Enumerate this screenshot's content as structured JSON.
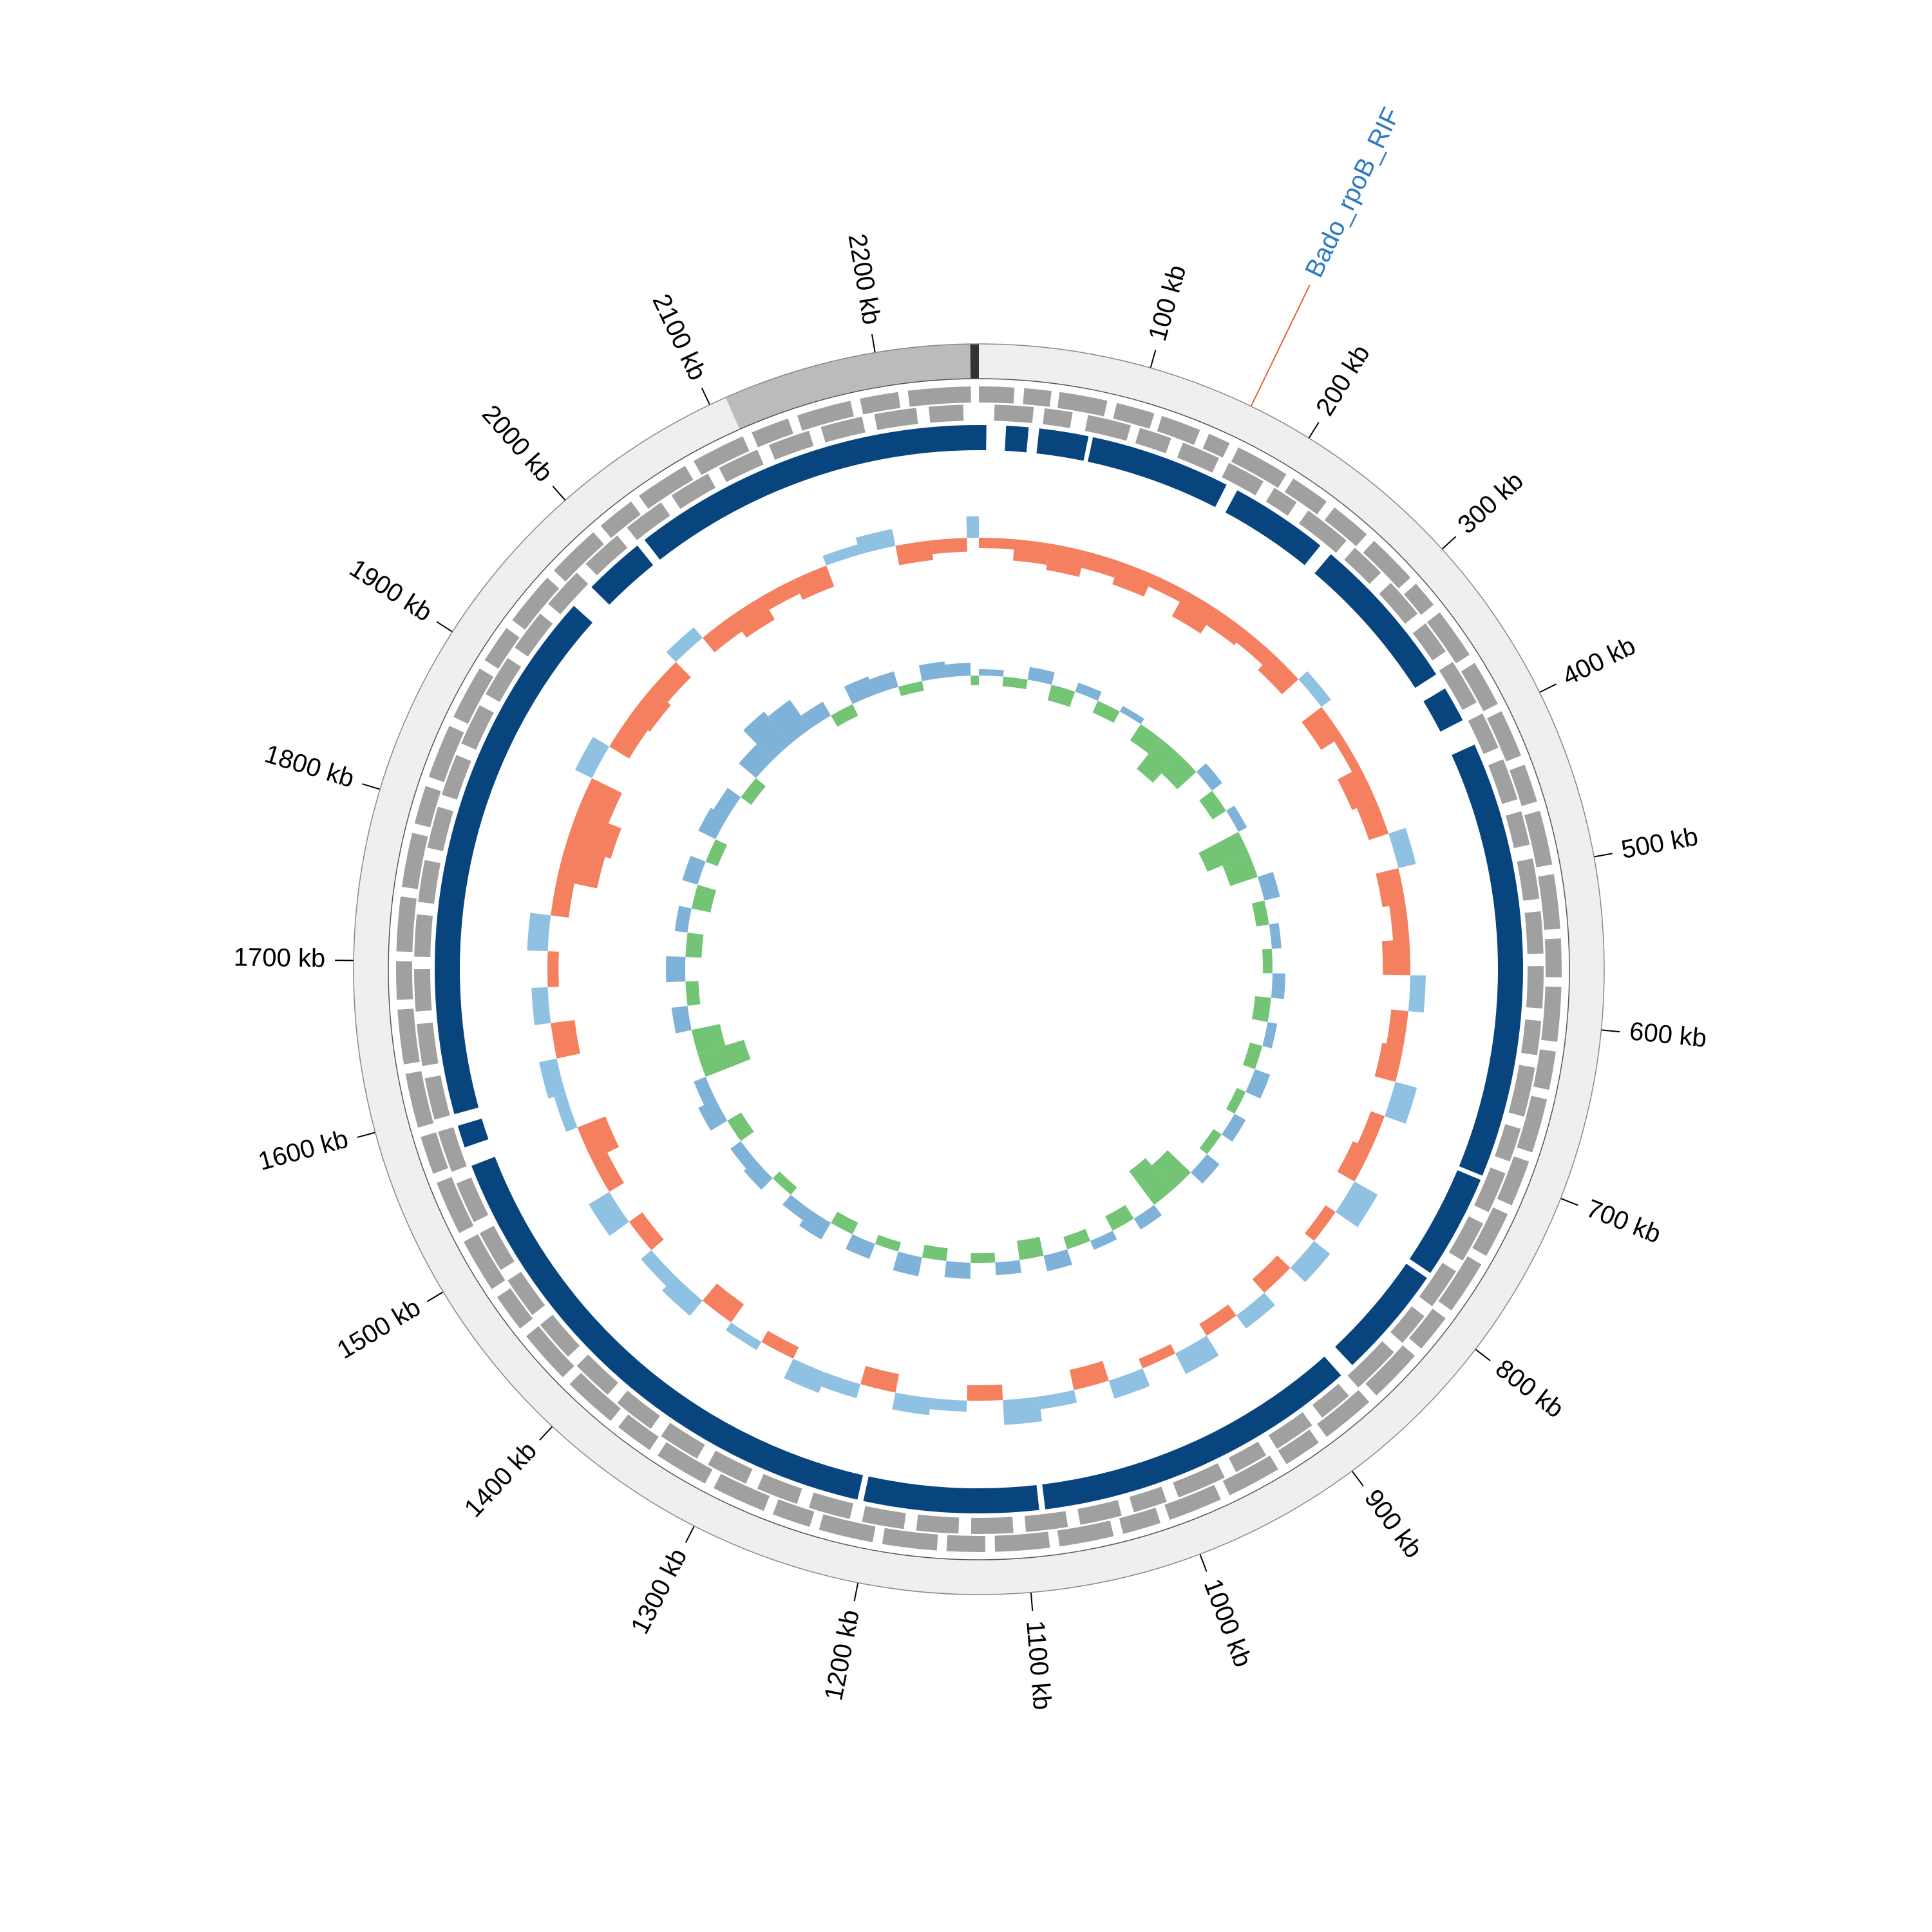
{
  "chart_data": {
    "type": "circular_genome",
    "xlim": [
      0,
      2260
    ],
    "xticks": [
      {
        "value": 100,
        "label": "100 kb"
      },
      {
        "value": 200,
        "label": "200 kb"
      },
      {
        "value": 300,
        "label": "300 kb"
      },
      {
        "value": 400,
        "label": "400 kb"
      },
      {
        "value": 500,
        "label": "500 kb"
      },
      {
        "value": 600,
        "label": "600 kb"
      },
      {
        "value": 700,
        "label": "700 kb"
      },
      {
        "value": 800,
        "label": "800 kb"
      },
      {
        "value": 900,
        "label": "900 kb"
      },
      {
        "value": 1000,
        "label": "1000 kb"
      },
      {
        "value": 1100,
        "label": "1100 kb"
      },
      {
        "value": 1200,
        "label": "1200 kb"
      },
      {
        "value": 1300,
        "label": "1300 kb"
      },
      {
        "value": 1400,
        "label": "1400 kb"
      },
      {
        "value": 1500,
        "label": "1500 kb"
      },
      {
        "value": 1600,
        "label": "1600 kb"
      },
      {
        "value": 1700,
        "label": "1700 kb"
      },
      {
        "value": 1800,
        "label": "1800 kb"
      },
      {
        "value": 1900,
        "label": "1900 kb"
      },
      {
        "value": 2000,
        "label": "2000 kb"
      },
      {
        "value": 2100,
        "label": "2100 kb"
      },
      {
        "value": 2200,
        "label": "2200 kb"
      }
    ],
    "contigs": [
      [
        0,
        2110
      ],
      [
        2110,
        2255
      ],
      [
        2255,
        2260
      ]
    ],
    "contig_colors": [
      "#efefef",
      "#bbbbbb",
      "#333333"
    ],
    "annotations": [
      {
        "label": "Bado_rpoB_RIF",
        "position": 162,
        "color": "#2f7bbf",
        "line_color": "#e8603c"
      }
    ],
    "genes_forward": [
      [
        0,
        22
      ],
      [
        28,
        45
      ],
      [
        50,
        80
      ],
      [
        86,
        110
      ],
      [
        115,
        140
      ],
      [
        146,
        160
      ],
      [
        166,
        200
      ],
      [
        205,
        230
      ],
      [
        236,
        262
      ],
      [
        268,
        300
      ],
      [
        305,
        322
      ],
      [
        328,
        360
      ],
      [
        366,
        395
      ],
      [
        400,
        430
      ],
      [
        436,
        460
      ],
      [
        466,
        500
      ],
      [
        506,
        540
      ],
      [
        546,
        570
      ],
      [
        576,
        610
      ],
      [
        616,
        640
      ],
      [
        646,
        680
      ],
      [
        686,
        715
      ],
      [
        721,
        750
      ],
      [
        756,
        790
      ],
      [
        796,
        820
      ],
      [
        826,
        860
      ],
      [
        866,
        900
      ],
      [
        906,
        930
      ],
      [
        936,
        970
      ],
      [
        976,
        1010
      ],
      [
        1016,
        1040
      ],
      [
        1046,
        1080
      ],
      [
        1086,
        1120
      ],
      [
        1126,
        1150
      ],
      [
        1156,
        1190
      ],
      [
        1196,
        1230
      ],
      [
        1236,
        1260
      ],
      [
        1266,
        1300
      ],
      [
        1306,
        1340
      ],
      [
        1346,
        1370
      ],
      [
        1376,
        1410
      ],
      [
        1416,
        1450
      ],
      [
        1456,
        1480
      ],
      [
        1486,
        1520
      ],
      [
        1526,
        1560
      ],
      [
        1566,
        1590
      ],
      [
        1596,
        1630
      ],
      [
        1636,
        1670
      ],
      [
        1676,
        1700
      ],
      [
        1706,
        1740
      ],
      [
        1746,
        1780
      ],
      [
        1786,
        1810
      ],
      [
        1816,
        1850
      ],
      [
        1856,
        1890
      ],
      [
        1896,
        1920
      ],
      [
        1926,
        1960
      ],
      [
        1966,
        2000
      ],
      [
        2006,
        2030
      ],
      [
        2036,
        2070
      ],
      [
        2076,
        2110
      ],
      [
        2116,
        2140
      ],
      [
        2146,
        2180
      ],
      [
        2186,
        2210
      ],
      [
        2216,
        2255
      ]
    ],
    "genes_reverse": [
      [
        10,
        35
      ],
      [
        42,
        60
      ],
      [
        70,
        98
      ],
      [
        104,
        125
      ],
      [
        133,
        158
      ],
      [
        165,
        190
      ],
      [
        198,
        215
      ],
      [
        224,
        255
      ],
      [
        262,
        285
      ],
      [
        294,
        320
      ],
      [
        328,
        350
      ],
      [
        358,
        388
      ],
      [
        396,
        420
      ],
      [
        428,
        455
      ],
      [
        463,
        485
      ],
      [
        494,
        520
      ],
      [
        528,
        555
      ],
      [
        563,
        590
      ],
      [
        598,
        620
      ],
      [
        628,
        660
      ],
      [
        668,
        690
      ],
      [
        698,
        725
      ],
      [
        733,
        760
      ],
      [
        768,
        795
      ],
      [
        803,
        825
      ],
      [
        833,
        865
      ],
      [
        873,
        895
      ],
      [
        903,
        930
      ],
      [
        938,
        960
      ],
      [
        968,
        1000
      ],
      [
        1008,
        1030
      ],
      [
        1038,
        1065
      ],
      [
        1073,
        1100
      ],
      [
        1108,
        1135
      ],
      [
        1143,
        1170
      ],
      [
        1178,
        1205
      ],
      [
        1213,
        1240
      ],
      [
        1248,
        1275
      ],
      [
        1283,
        1310
      ],
      [
        1318,
        1345
      ],
      [
        1353,
        1380
      ],
      [
        1388,
        1415
      ],
      [
        1423,
        1450
      ],
      [
        1458,
        1485
      ],
      [
        1493,
        1520
      ],
      [
        1528,
        1555
      ],
      [
        1563,
        1590
      ],
      [
        1598,
        1625
      ],
      [
        1633,
        1660
      ],
      [
        1668,
        1695
      ],
      [
        1703,
        1730
      ],
      [
        1738,
        1765
      ],
      [
        1773,
        1800
      ],
      [
        1808,
        1835
      ],
      [
        1843,
        1870
      ],
      [
        1878,
        1905
      ],
      [
        1913,
        1940
      ],
      [
        1948,
        1975
      ],
      [
        1983,
        2010
      ],
      [
        2018,
        2045
      ],
      [
        2053,
        2080
      ],
      [
        2088,
        2115
      ],
      [
        2123,
        2150
      ],
      [
        2158,
        2185
      ],
      [
        2193,
        2220
      ],
      [
        2228,
        2250
      ]
    ],
    "gene_color": "#a0a0a0",
    "blast_segments": [
      [
        0,
        5
      ],
      [
        18,
        33
      ],
      [
        40,
        73
      ],
      [
        76,
        170
      ],
      [
        178,
        244
      ],
      [
        253,
        359
      ],
      [
        370,
        394
      ],
      [
        412,
        705
      ],
      [
        708,
        778
      ],
      [
        782,
        858
      ],
      [
        868,
        1086
      ],
      [
        1090,
        1207
      ],
      [
        1211,
        1562
      ],
      [
        1575,
        1590
      ],
      [
        1598,
        1958
      ],
      [
        1975,
        2016
      ],
      [
        2022,
        2260
      ]
    ],
    "blast_color": "#08457e",
    "windows": [
      0,
      30,
      60,
      90,
      120,
      150,
      180,
      210,
      240,
      270,
      300,
      330,
      360,
      390,
      420,
      450,
      480,
      510,
      540,
      570,
      600,
      630,
      660,
      690,
      720,
      750,
      780,
      810,
      840,
      870,
      900,
      930,
      960,
      990,
      1020,
      1050,
      1080,
      1110,
      1140,
      1170,
      1200,
      1230,
      1260,
      1290,
      1320,
      1350,
      1380,
      1410,
      1440,
      1470,
      1500,
      1530,
      1560,
      1590,
      1620,
      1650,
      1680,
      1710,
      1740,
      1770,
      1800,
      1830,
      1860,
      1890,
      1920,
      1950,
      1980,
      2010,
      2040,
      2070,
      2100,
      2130,
      2160,
      2190,
      2220,
      2250
    ],
    "gc_content": {
      "ylim": [
        -6,
        6
      ],
      "colors": [
        "#8fc1e3",
        "#f4805f"
      ],
      "values": [
        -1.2,
        -2.5,
        -3.1,
        -2.0,
        -2.8,
        -1.5,
        -3.4,
        -2.2,
        -1.8,
        -2.6,
        1.4,
        -2.9,
        -1.1,
        -3.0,
        -2.4,
        2.1,
        -2.7,
        -1.9,
        -3.2,
        1.8,
        -2.0,
        -2.5,
        2.6,
        -1.7,
        -2.3,
        3.1,
        -1.4,
        2.4,
        -2.1,
        1.9,
        -1.6,
        2.7,
        -1.2,
        2.2,
        -2.4,
        1.5,
        2.9,
        -1.8,
        1.3,
        2.0,
        -2.2,
        1.7,
        2.5,
        -1.5,
        1.1,
        -2.6,
        2.3,
        1.6,
        -1.9,
        2.8,
        -2.0,
        -3.5,
        1.4,
        2.1,
        -2.8,
        1.9,
        -1.3,
        2.4,
        -2.1,
        -4.8,
        -5.5,
        -3.9,
        2.2,
        -2.7,
        -3.0,
        -2.5,
        1.6,
        -2.2,
        -3.1,
        -1.8,
        -2.6,
        1.2,
        2.0,
        -2.3,
        -1.6,
        2.5
      ]
    },
    "gc_skew": {
      "ylim": [
        -0.2,
        0.2
      ],
      "colors": [
        "#7fb2d9",
        "#74c476"
      ],
      "values": [
        0.02,
        -0.03,
        0.04,
        -0.05,
        0.03,
        -0.04,
        0.02,
        -0.06,
        -0.12,
        -0.08,
        0.04,
        -0.05,
        0.03,
        -0.14,
        -0.09,
        0.05,
        -0.04,
        0.03,
        -0.03,
        0.04,
        -0.05,
        0.03,
        -0.04,
        0.05,
        -0.03,
        0.04,
        -0.03,
        0.05,
        -0.1,
        -0.13,
        0.04,
        -0.05,
        0.03,
        -0.04,
        0.05,
        -0.06,
        0.04,
        -0.03,
        0.05,
        -0.04,
        0.06,
        -0.03,
        0.05,
        -0.04,
        0.06,
        0.04,
        -0.03,
        0.05,
        0.04,
        -0.05,
        0.06,
        0.04,
        -0.15,
        -0.09,
        0.05,
        -0.04,
        0.06,
        -0.05,
        0.04,
        -0.06,
        0.05,
        -0.04,
        0.06,
        0.05,
        -0.04,
        0.07,
        0.13,
        0.11,
        0.05,
        -0.04,
        0.06,
        0.05,
        -0.03,
        0.05,
        0.04,
        -0.03
      ]
    }
  }
}
